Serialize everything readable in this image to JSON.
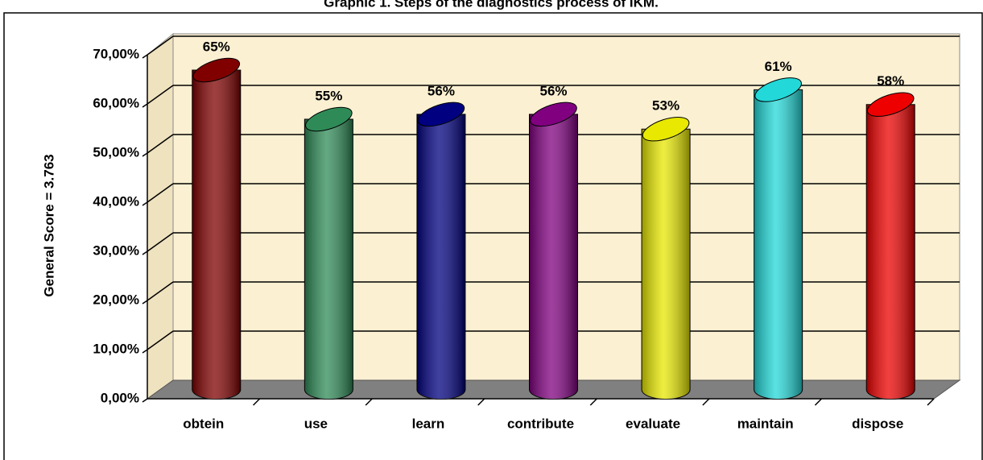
{
  "chart_data": {
    "type": "bar",
    "title": "Graphic 1. Steps of the diagnostics process of IKM.",
    "ylabel": "General Score = 3.763",
    "categories": [
      "obtein",
      "use",
      "learn",
      "contribute",
      "evaluate",
      "maintain",
      "dispose"
    ],
    "values": [
      65,
      55,
      56,
      56,
      53,
      61,
      58
    ],
    "value_labels": [
      "65%",
      "55%",
      "56%",
      "56%",
      "53%",
      "61%",
      "58%"
    ],
    "colors": [
      "#800000",
      "#2e8b57",
      "#000080",
      "#800080",
      "#e8e800",
      "#22d8d8",
      "#ee0000"
    ],
    "ylim": [
      0,
      70
    ],
    "yticks": [
      {
        "value": 0,
        "label": "0,00%"
      },
      {
        "value": 10,
        "label": "10,00%"
      },
      {
        "value": 20,
        "label": "20,00%"
      },
      {
        "value": 30,
        "label": "30,00%"
      },
      {
        "value": 40,
        "label": "40,00%"
      },
      {
        "value": 50,
        "label": "50,00%"
      },
      {
        "value": 60,
        "label": "60,00%"
      },
      {
        "value": 70,
        "label": "70,00%"
      }
    ],
    "grid": true
  }
}
